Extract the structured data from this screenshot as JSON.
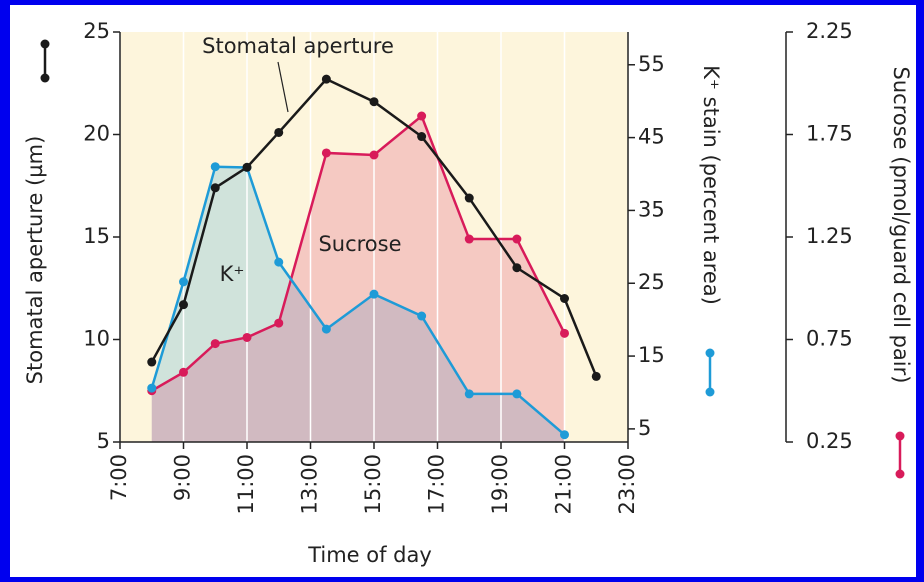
{
  "chart_data": {
    "type": "line",
    "annotations": [
      "Stomatal aperture",
      "K⁺",
      "Sucrose"
    ],
    "xlabel": "Time of day",
    "ylabel": "Stomatal aperture (µm)",
    "y2label": "K⁺ stain (percent area)",
    "y3label": "Sucrose (pmol/guard cell pair)",
    "xlim": [
      7,
      23
    ],
    "xticks": [
      {
        "value": 7,
        "label": "7:00"
      },
      {
        "value": 9,
        "label": "9:00"
      },
      {
        "value": 11,
        "label": "11:00"
      },
      {
        "value": 13,
        "label": "13:00"
      },
      {
        "value": 15,
        "label": "15:00"
      },
      {
        "value": 17,
        "label": "17:00"
      },
      {
        "value": 19,
        "label": "19:00"
      },
      {
        "value": 21,
        "label": "21:00"
      },
      {
        "value": 23,
        "label": "23:00"
      }
    ],
    "ylim": [
      5,
      25
    ],
    "yticks": [
      5,
      10,
      15,
      20,
      25
    ],
    "y2lim": [
      3.2,
      59.5
    ],
    "y2ticks": [
      5,
      15,
      25,
      35,
      45,
      55
    ],
    "y3lim": [
      0.25,
      2.25
    ],
    "y3ticks": [
      0.25,
      0.75,
      1.25,
      1.75,
      2.25
    ],
    "grid": true,
    "series": [
      {
        "name": "Stomatal aperture",
        "color": "#1a1a1a",
        "axis": "y",
        "fill": false,
        "x": [
          8,
          9,
          10,
          11,
          12,
          13.5,
          15,
          16.5,
          18,
          19.5,
          21,
          22
        ],
        "values": [
          8.9,
          11.7,
          17.4,
          18.4,
          20.1,
          22.7,
          21.6,
          19.9,
          16.9,
          13.5,
          12.0,
          8.2
        ]
      },
      {
        "name": "K⁺",
        "color": "#1e9bd7",
        "axis": "y2",
        "fill": true,
        "x": [
          8,
          9,
          10,
          11,
          12,
          13.5,
          15,
          16.5,
          18,
          19.5,
          21
        ],
        "values": [
          10.6,
          25.2,
          41.0,
          40.9,
          27.9,
          18.7,
          23.5,
          20.5,
          9.8,
          9.8,
          4.2
        ]
      },
      {
        "name": "Sucrose",
        "color": "#d81b5a",
        "axis": "y3",
        "fill": true,
        "x": [
          8,
          9,
          10,
          11,
          12,
          13.5,
          15,
          16.5,
          18,
          19.5,
          21
        ],
        "values": [
          0.5,
          0.59,
          0.73,
          0.76,
          0.83,
          1.66,
          1.65,
          1.84,
          1.24,
          1.24,
          0.78
        ]
      }
    ]
  }
}
